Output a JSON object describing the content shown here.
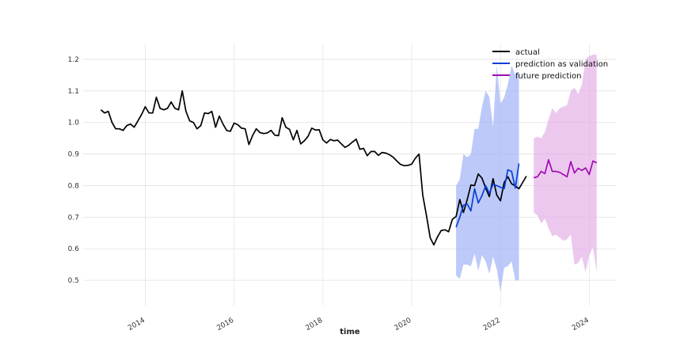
{
  "chart_data": {
    "type": "line",
    "title": "",
    "xlabel": "time",
    "ylabel": "",
    "xlim": [
      2012.6,
      2024.6
    ],
    "ylim": [
      0.42,
      1.25
    ],
    "grid": true,
    "legend_position": "top-right",
    "x_ticks": [
      {
        "value": 2014,
        "label": "2014"
      },
      {
        "value": 2016,
        "label": "2016"
      },
      {
        "value": 2018,
        "label": "2018"
      },
      {
        "value": 2020,
        "label": "2020"
      },
      {
        "value": 2022,
        "label": "2022"
      },
      {
        "value": 2024,
        "label": "2024"
      }
    ],
    "y_ticks": [
      {
        "value": 0.5,
        "label": "0.5"
      },
      {
        "value": 0.6,
        "label": "0.6"
      },
      {
        "value": 0.7,
        "label": "0.7"
      },
      {
        "value": 0.8,
        "label": "0.8"
      },
      {
        "value": 0.9,
        "label": "0.9"
      },
      {
        "value": 1.0,
        "label": "1.0"
      },
      {
        "value": 1.1,
        "label": "1.1"
      },
      {
        "value": 1.2,
        "label": "1.2"
      }
    ],
    "series": [
      {
        "name": "actual",
        "color": "#000000",
        "start": 2013.0,
        "step": 0.08333,
        "values": [
          1.04,
          1.03,
          1.035,
          1.0,
          0.98,
          0.98,
          0.975,
          0.99,
          0.995,
          0.985,
          1.005,
          1.025,
          1.05,
          1.03,
          1.03,
          1.08,
          1.045,
          1.04,
          1.045,
          1.065,
          1.045,
          1.04,
          1.1,
          1.035,
          1.005,
          1.0,
          0.98,
          0.99,
          1.03,
          1.028,
          1.035,
          0.985,
          1.02,
          0.995,
          0.975,
          0.972,
          0.998,
          0.993,
          0.982,
          0.98,
          0.93,
          0.958,
          0.98,
          0.968,
          0.965,
          0.967,
          0.975,
          0.96,
          0.958,
          1.015,
          0.985,
          0.978,
          0.945,
          0.975,
          0.932,
          0.942,
          0.956,
          0.982,
          0.976,
          0.977,
          0.945,
          0.935,
          0.946,
          0.942,
          0.944,
          0.932,
          0.921,
          0.928,
          0.938,
          0.947,
          0.915,
          0.918,
          0.895,
          0.908,
          0.908,
          0.896,
          0.905,
          0.903,
          0.898,
          0.89,
          0.878,
          0.867,
          0.863,
          0.864,
          0.868,
          0.887,
          0.9,
          0.77,
          0.705,
          0.635,
          0.612,
          0.638,
          0.658,
          0.66,
          0.654,
          0.693,
          0.702,
          0.756,
          0.715,
          0.755,
          0.802,
          0.8,
          0.837,
          0.824,
          0.792,
          0.765,
          0.822,
          0.77,
          0.752,
          0.81,
          0.828,
          0.806,
          0.799,
          0.79,
          0.81,
          0.83
        ]
      },
      {
        "name": "prediction as validation",
        "color": "#0a3fd6",
        "band_color": "#9fb2f7",
        "start": 2021.0,
        "step": 0.08333,
        "values": [
          0.668,
          0.7,
          0.738,
          0.742,
          0.72,
          0.79,
          0.745,
          0.768,
          0.8,
          0.775,
          0.805,
          0.8,
          0.795,
          0.79,
          0.85,
          0.845,
          0.792,
          0.87
        ],
        "upper": [
          0.8,
          0.82,
          0.9,
          0.89,
          0.9,
          0.98,
          0.98,
          1.05,
          1.1,
          1.08,
          0.985,
          1.18,
          1.06,
          1.08,
          1.12,
          1.18,
          1.15,
          1.16
        ],
        "lower": [
          0.515,
          0.505,
          0.55,
          0.55,
          0.545,
          0.585,
          0.53,
          0.58,
          0.56,
          0.52,
          0.575,
          0.535,
          0.465,
          0.54,
          0.545,
          0.56,
          0.5,
          0.5
        ]
      },
      {
        "name": "future prediction",
        "color": "#a10ab3",
        "band_color": "#e4b0e7",
        "start": 2022.75,
        "step": 0.08333,
        "values": [
          0.825,
          0.828,
          0.845,
          0.838,
          0.882,
          0.845,
          0.845,
          0.842,
          0.835,
          0.828,
          0.876,
          0.84,
          0.855,
          0.848,
          0.856,
          0.835,
          0.878,
          0.872
        ],
        "upper": [
          0.95,
          0.955,
          0.95,
          0.97,
          1.01,
          1.045,
          1.03,
          1.045,
          1.05,
          1.055,
          1.1,
          1.11,
          1.09,
          1.12,
          1.2,
          1.21,
          1.215,
          1.215
        ],
        "lower": [
          0.715,
          0.705,
          0.68,
          0.695,
          0.665,
          0.64,
          0.645,
          0.635,
          0.625,
          0.63,
          0.645,
          0.55,
          0.555,
          0.575,
          0.525,
          0.58,
          0.605,
          0.525
        ]
      }
    ]
  }
}
